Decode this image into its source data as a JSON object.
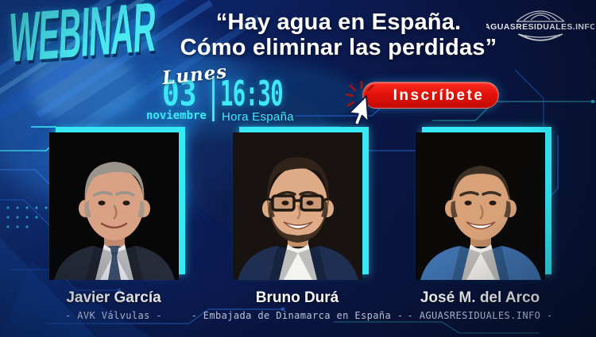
{
  "banner": {
    "wordmark": "WEBINAR",
    "title_line1": "“Hay agua en España.",
    "title_line2": "Cómo eliminar las perdidas”",
    "brand": "AGUASRESIDUALES.INFO"
  },
  "schedule": {
    "weekday": "Lunes",
    "day": "03",
    "month": "noviembre",
    "time": "16:30",
    "timezone_label": "Hora España"
  },
  "cta": {
    "label": "Inscríbete",
    "button_color": "#e31209"
  },
  "colors": {
    "background_navy": "#0a1748",
    "accent_cyan": "#3ee8f6",
    "accent_blue": "#2b6fe2",
    "text_white": "#ffffff"
  },
  "speakers": [
    {
      "name": "Javier García",
      "org": "- AVK Válvulas -",
      "photo": {
        "bg": "#070707",
        "skin": "#d9a284",
        "skin_shadow": "#c08a6c",
        "hair": "#9b948a",
        "hair_style": "combed-back",
        "jacket": "#262c3a",
        "shirt": "#e8eaee",
        "tie": "#3c4f6e",
        "features": [
          "tie"
        ]
      }
    },
    {
      "name": "Bruno Durá",
      "org": "- Embajada de Dinamarca en España -",
      "photo": {
        "bg": "#181210",
        "skin": "#e0ab87",
        "skin_shadow": "#c28f68",
        "hair": "#31231a",
        "hair_style": "full",
        "beard": "#3c2b1f",
        "jacket": "#1e2f52",
        "shirt": "#f3f3f1",
        "features": [
          "glasses",
          "beard",
          "big-smile"
        ]
      }
    },
    {
      "name": "José M. del Arco",
      "org": "- AGUASRESIDUALES.INFO -",
      "photo": {
        "bg": "#0b0a09",
        "skin": "#d8a178",
        "skin_shadow": "#bd8a62",
        "hair": "#3d2f23",
        "hair_style": "receding",
        "jacket": "#3f72ad",
        "shirt": "#f5f3ee",
        "features": [
          "big-smile"
        ]
      }
    }
  ]
}
